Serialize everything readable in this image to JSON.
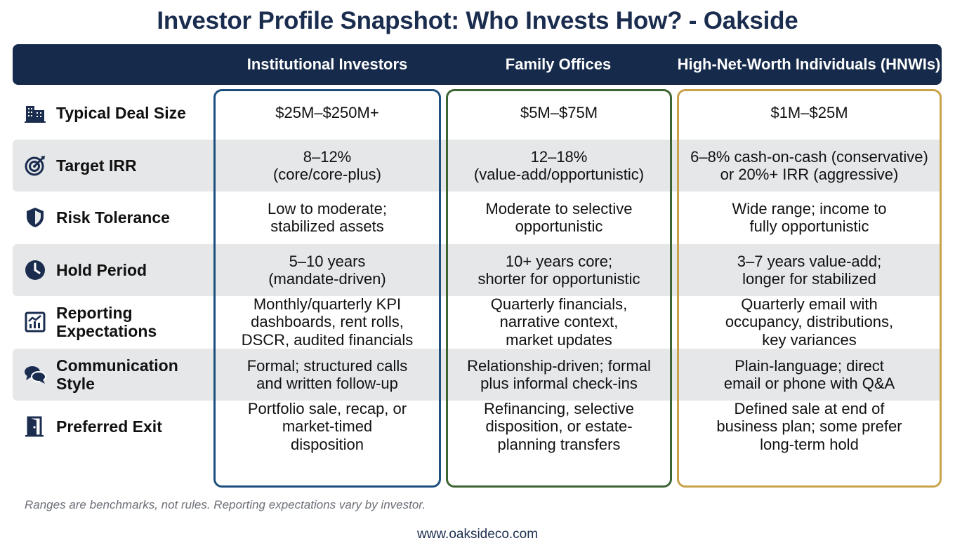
{
  "title": "Investor Profile Snapshot: Who Invests How? - Oakside",
  "columns": [
    {
      "label": "Institutional Investors",
      "border_color": "#1d4f7e"
    },
    {
      "label": "Family Offices",
      "border_color": "#3d6433"
    },
    {
      "label": "High-Net-Worth Individuals (HNWIs)",
      "border_color": "#c9a24a"
    }
  ],
  "rows": [
    {
      "label": "Typical Deal Size",
      "icon": "building-icon",
      "cells": [
        "$25M–$250M+",
        "$5M–$75M",
        "$1M–$25M"
      ]
    },
    {
      "label": "Target IRR",
      "icon": "target-icon",
      "cells": [
        "8–12%\n(core/core-plus)",
        "12–18%\n(value-add/opportunistic)",
        "6–8% cash-on-cash (conservative)\nor 20%+ IRR (aggressive)"
      ]
    },
    {
      "label": "Risk Tolerance",
      "icon": "shield-icon",
      "cells": [
        "Low to moderate;\nstabilized assets",
        "Moderate to selective\nopportunistic",
        "Wide range; income to\nfully opportunistic"
      ]
    },
    {
      "label": "Hold Period",
      "icon": "clock-icon",
      "cells": [
        "5–10 years\n(mandate-driven)",
        "10+ years core;\nshorter for opportunistic",
        "3–7 years value-add;\nlonger for stabilized"
      ]
    },
    {
      "label": "Reporting\nExpectations",
      "icon": "chart-icon",
      "cells": [
        "Monthly/quarterly KPI\ndashboards, rent rolls,\nDSCR, audited financials",
        "Quarterly financials,\nnarrative context,\nmarket updates",
        "Quarterly email with\noccupancy, distributions,\nkey variances"
      ]
    },
    {
      "label": "Communication\nStyle",
      "icon": "chat-icon",
      "cells": [
        "Formal; structured calls\nand written follow-up",
        "Relationship-driven; formal\nplus informal check-ins",
        "Plain-language; direct\nemail or phone with Q&A"
      ]
    },
    {
      "label": "Preferred Exit",
      "icon": "door-exit-icon",
      "cells": [
        "Portfolio sale, recap, or\nmarket-timed\ndisposition",
        "Refinancing, selective\ndisposition, or estate-\nplanning transfers",
        "Defined sale at end of\nbusiness plan; some prefer\nlong-term hold"
      ]
    }
  ],
  "footnote": "Ranges are benchmarks, not rules. Reporting expectations vary by investor.",
  "website": "www.oaksideco.com"
}
